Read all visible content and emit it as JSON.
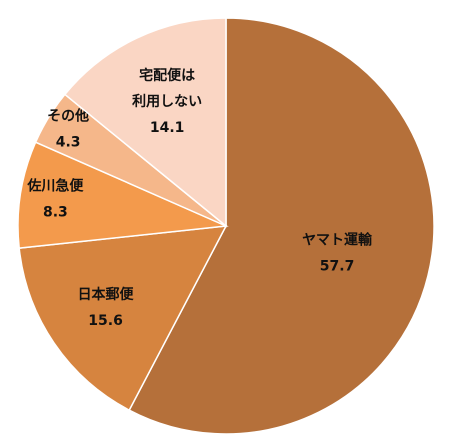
{
  "chart_data": {
    "type": "pie",
    "series": [
      {
        "name": "ヤマト運輸",
        "color": "#b5703a",
        "values": [
          57.7
        ]
      },
      {
        "name": "日本郵便",
        "color": "#d6843f",
        "values": [
          15.6
        ]
      },
      {
        "name": "佐川急便",
        "color": "#f39a4c",
        "values": [
          8.3
        ]
      },
      {
        "name": "その他",
        "color": "#f5b78a",
        "values": [
          4.3
        ]
      },
      {
        "name": "宅配便は\n利用しない",
        "color": "#fad6c4",
        "values": [
          14.1
        ]
      }
    ]
  }
}
